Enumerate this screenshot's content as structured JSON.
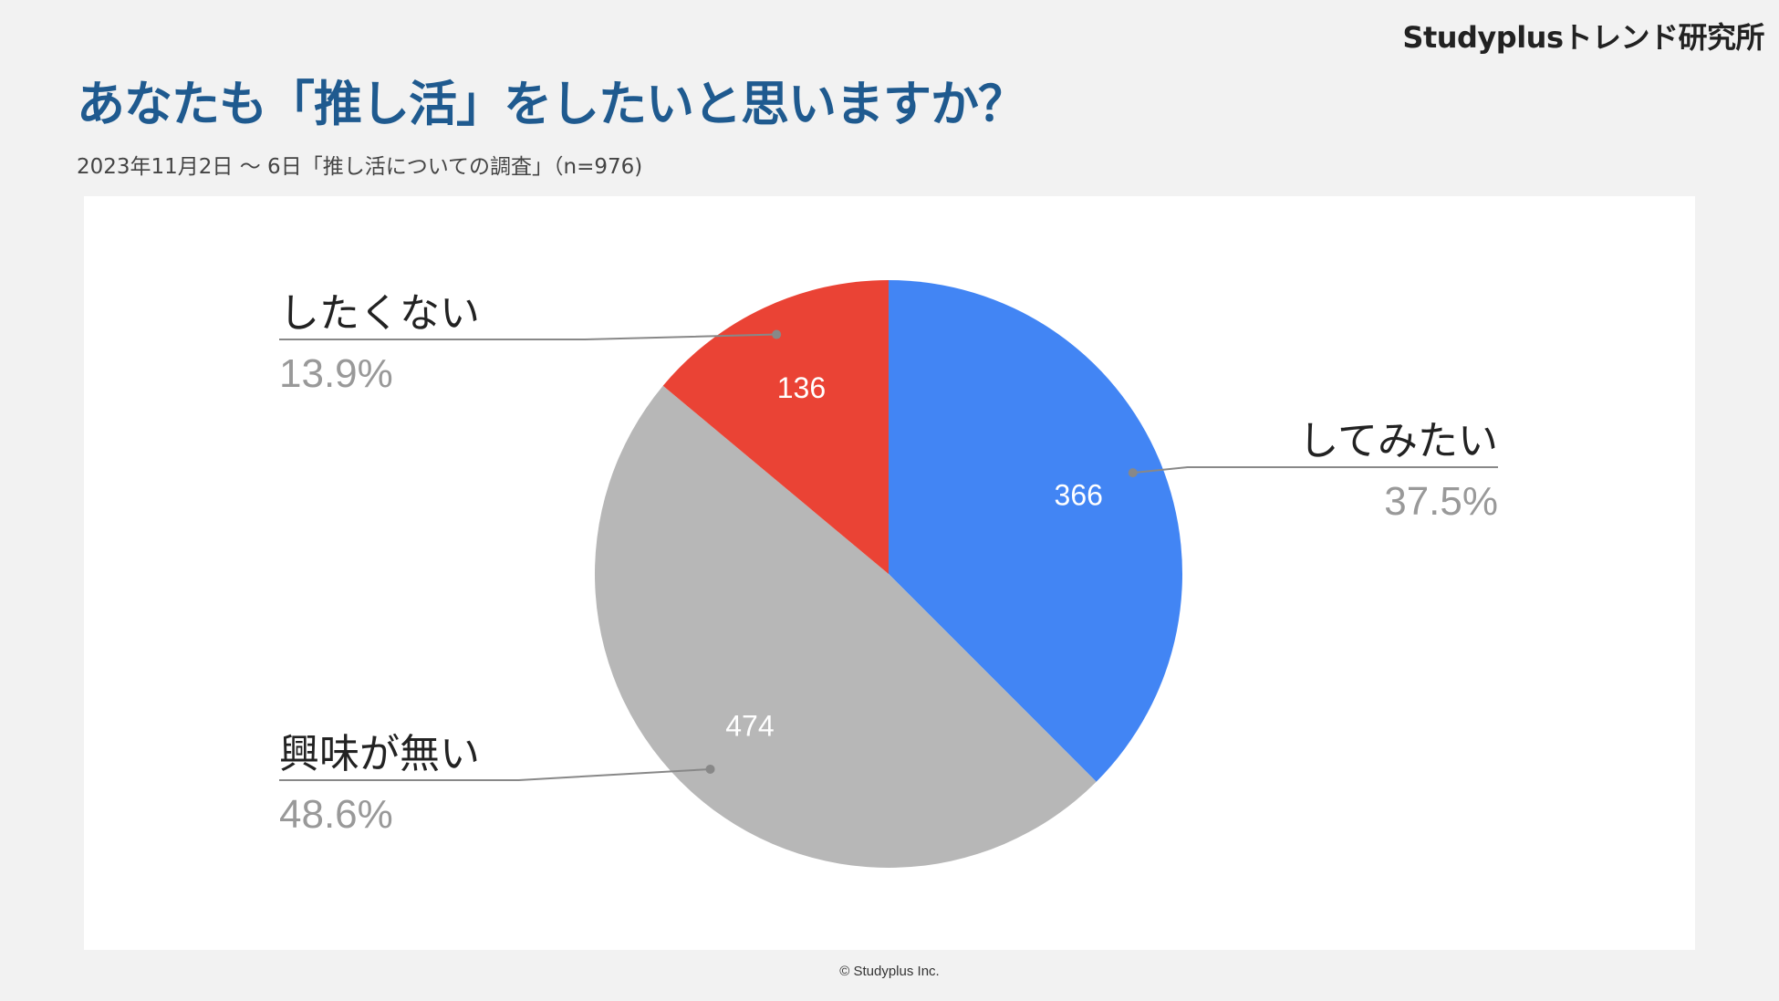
{
  "brand": "Studyplusトレンド研究所",
  "header": {
    "title": "あなたも「推し活」をしたいと思いますか？",
    "subtitle": "2023年11月2日 〜 6日「推し活についての調査」（n=976)"
  },
  "footer": {
    "copyright": "© Studyplus Inc."
  },
  "chart_data": {
    "type": "pie",
    "title": "",
    "slices": [
      {
        "label": "してみたい",
        "value": 366,
        "percent": "37.5%",
        "color": "#4285f4"
      },
      {
        "label": "興味が無い",
        "value": 474,
        "percent": "48.6%",
        "color": "#b7b7b7"
      },
      {
        "label": "したくない",
        "value": 136,
        "percent": "13.9%",
        "color": "#ea4335"
      }
    ],
    "legend": "none",
    "label_text_color": "#222222",
    "percent_text_color": "#999999",
    "leader_line_color": "#888888"
  }
}
